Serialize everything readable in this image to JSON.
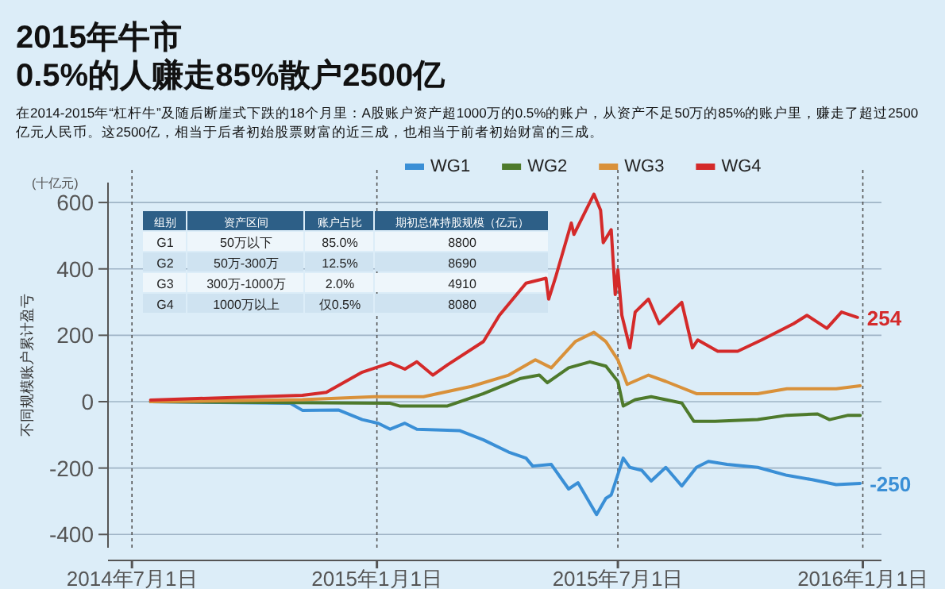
{
  "chart_data": {
    "type": "line",
    "title": "2015年牛市\n0.5%的人赚走85%散户2500亿",
    "subtitle": "在2014-2015年“杠杆牛”及随后断崖式下跌的18个月里：A股账户资产超1000万的0.5%的账户，从资产不足50万的85%的账户里，赚走了超过2500亿元人民币。这2500亿，相当于后者初始股票财富的近三成，也相当于前者初始财富的三成。",
    "ylabel": "不同规模账户累计盈亏",
    "xlim": [
      "2014-06-13",
      "2016-01-15"
    ],
    "xticks": [
      {
        "value": "2014-07-01",
        "label": "2014年7月1日"
      },
      {
        "value": "2015-01-01",
        "label": "2015年1月1日"
      },
      {
        "value": "2015-07-01",
        "label": "2015年7月1日"
      },
      {
        "value": "2016-01-01",
        "label": "2016年1月1日"
      }
    ],
    "ylim": [
      -440,
      660
    ],
    "yticks": [
      -400,
      -200,
      0,
      200,
      400,
      600
    ],
    "grid": true,
    "legend": "top",
    "line_style": "solid",
    "marker": "none",
    "series": [
      {
        "name": "WG1",
        "color": "#3a8fd6",
        "x": [
          "2014-07-15",
          "2014-10-28",
          "2014-11-06",
          "2014-12-03",
          "2014-12-21",
          "2015-01-02",
          "2015-01-11",
          "2015-01-22",
          "2015-01-31",
          "2015-03-04",
          "2015-03-22",
          "2015-04-10",
          "2015-04-23",
          "2015-04-28",
          "2015-05-12",
          "2015-05-25",
          "2015-06-01",
          "2015-06-15",
          "2015-06-22",
          "2015-06-26",
          "2015-07-05",
          "2015-07-10",
          "2015-07-19",
          "2015-07-26",
          "2015-08-06",
          "2015-08-18",
          "2015-08-29",
          "2015-09-07",
          "2015-09-21",
          "2015-10-14",
          "2015-11-05",
          "2015-11-24",
          "2015-12-12",
          "2015-12-30"
        ],
        "values": [
          0,
          -5,
          -26,
          -25,
          -54,
          -65,
          -83,
          -65,
          -83,
          -87,
          -115,
          -152,
          -170,
          -194,
          -189,
          -263,
          -244,
          -340,
          -291,
          -281,
          -170,
          -198,
          -207,
          -239,
          -198,
          -254,
          -198,
          -180,
          -189,
          -198,
          -222,
          -235,
          -250,
          -246
        ]
      },
      {
        "name": "WG2",
        "color": "#4e7a2c",
        "x": [
          "2014-07-15",
          "2015-01-11",
          "2015-01-18",
          "2015-02-23",
          "2015-03-22",
          "2015-04-19",
          "2015-05-03",
          "2015-05-09",
          "2015-05-25",
          "2015-06-10",
          "2015-06-22",
          "2015-07-01",
          "2015-07-05",
          "2015-07-14",
          "2015-07-26",
          "2015-08-06",
          "2015-08-18",
          "2015-08-27",
          "2015-09-12",
          "2015-10-14",
          "2015-11-05",
          "2015-11-28",
          "2015-12-07",
          "2015-12-21",
          "2015-12-30"
        ],
        "values": [
          0,
          -5,
          -13,
          -13,
          24,
          70,
          80,
          57,
          102,
          120,
          107,
          61,
          -13,
          6,
          15,
          6,
          -4,
          -59,
          -59,
          -54,
          -41,
          -37,
          -54,
          -41,
          -41
        ]
      },
      {
        "name": "WG3",
        "color": "#d9913a",
        "x": [
          "2014-07-15",
          "2014-11-06",
          "2014-12-30",
          "2015-02-05",
          "2015-03-13",
          "2015-04-10",
          "2015-04-30",
          "2015-05-12",
          "2015-05-30",
          "2015-06-13",
          "2015-06-22",
          "2015-07-01",
          "2015-07-08",
          "2015-07-24",
          "2015-08-06",
          "2015-08-29",
          "2015-10-14",
          "2015-11-05",
          "2015-12-12",
          "2015-12-30"
        ],
        "values": [
          0,
          6,
          15,
          15,
          46,
          80,
          126,
          102,
          181,
          209,
          181,
          126,
          52,
          80,
          61,
          24,
          24,
          39,
          39,
          48
        ]
      },
      {
        "name": "WG4",
        "color": "#d42a2a",
        "x": [
          "2014-07-15",
          "2014-11-06",
          "2014-11-24",
          "2014-12-21",
          "2015-01-11",
          "2015-01-22",
          "2015-01-31",
          "2015-02-12",
          "2015-02-23",
          "2015-03-22",
          "2015-04-03",
          "2015-04-23",
          "2015-05-08",
          "2015-05-10",
          "2015-05-15",
          "2015-05-27",
          "2015-05-29",
          "2015-06-13",
          "2015-06-18",
          "2015-06-20",
          "2015-06-26",
          "2015-06-29",
          "2015-07-01",
          "2015-07-04",
          "2015-07-10",
          "2015-07-14",
          "2015-07-24",
          "2015-08-01",
          "2015-08-18",
          "2015-08-26",
          "2015-08-30",
          "2015-09-14",
          "2015-09-29",
          "2015-10-17",
          "2015-11-10",
          "2015-11-20",
          "2015-12-05",
          "2015-12-16",
          "2015-12-28"
        ],
        "values": [
          5,
          19,
          28,
          89,
          117,
          98,
          120,
          80,
          111,
          181,
          260,
          357,
          372,
          309,
          372,
          538,
          504,
          625,
          577,
          479,
          518,
          323,
          397,
          260,
          162,
          270,
          309,
          235,
          299,
          162,
          186,
          152,
          152,
          186,
          235,
          260,
          221,
          270,
          254
        ]
      }
    ],
    "annotations": [
      "(十亿元)",
      "组别",
      "资产区间",
      "账户占比",
      "期初总体持股规模（亿元）",
      "G1",
      "50万以下",
      "85.0%",
      "8800",
      "G2",
      "50万-300万",
      "12.5%",
      "8690",
      "G3",
      "300万-1000万",
      "2.0%",
      "4910",
      "G4",
      "1000万以上",
      "仅0.5%",
      "8080",
      {
        "text": "254",
        "x": "2015-12-28",
        "y": 254
      },
      {
        "text": "-250",
        "x": "2015-12-30",
        "y": -246
      }
    ]
  }
}
